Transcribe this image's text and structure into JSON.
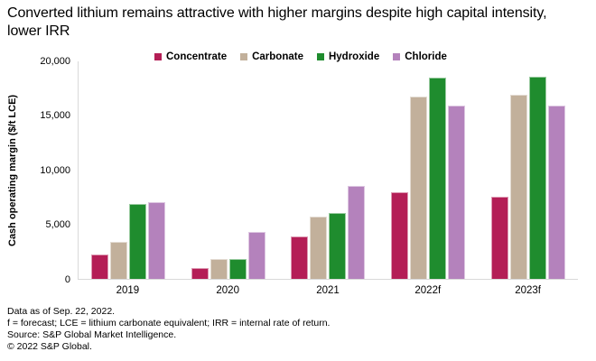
{
  "title": "Converted lithium remains attractive with higher margins despite high capital intensity, lower IRR",
  "y_axis": {
    "label": "Cash operating margin ($/t LCE)",
    "ticks": [
      {
        "label": "0",
        "value": 0
      },
      {
        "label": "5,000",
        "value": 5000
      },
      {
        "label": "10,000",
        "value": 10000
      },
      {
        "label": "15,000",
        "value": 15000
      },
      {
        "label": "20,000",
        "value": 20000
      }
    ]
  },
  "chart_data": {
    "type": "bar",
    "title": "Converted lithium remains attractive with higher margins despite high capital intensity, lower IRR",
    "categories": [
      "2019",
      "2020",
      "2021",
      "2022f",
      "2023f"
    ],
    "series": [
      {
        "name": "Concentrate",
        "color": "#b41e56",
        "values": [
          2200,
          1000,
          3900,
          7900,
          7500
        ]
      },
      {
        "name": "Carbonate",
        "color": "#c2b09b",
        "values": [
          3400,
          1800,
          5700,
          16700,
          16900
        ]
      },
      {
        "name": "Hydroxide",
        "color": "#1f8c2e",
        "values": [
          6900,
          1800,
          6000,
          18400,
          18500
        ]
      },
      {
        "name": "Chloride",
        "color": "#b482bc",
        "values": [
          7000,
          4300,
          8500,
          15900,
          15900
        ]
      }
    ],
    "xlabel": "",
    "ylabel": "Cash operating margin ($/t LCE)",
    "ylim": [
      0,
      20000
    ],
    "grid": false,
    "legend_position": "top"
  },
  "footer": {
    "lines": [
      "Data as of Sep. 22, 2022.",
      "f = forecast; LCE = lithium carbonate equivalent; IRR = internal rate of return.",
      "Source: S&P Global Market Intelligence.",
      "© 2022 S&P Global."
    ]
  }
}
